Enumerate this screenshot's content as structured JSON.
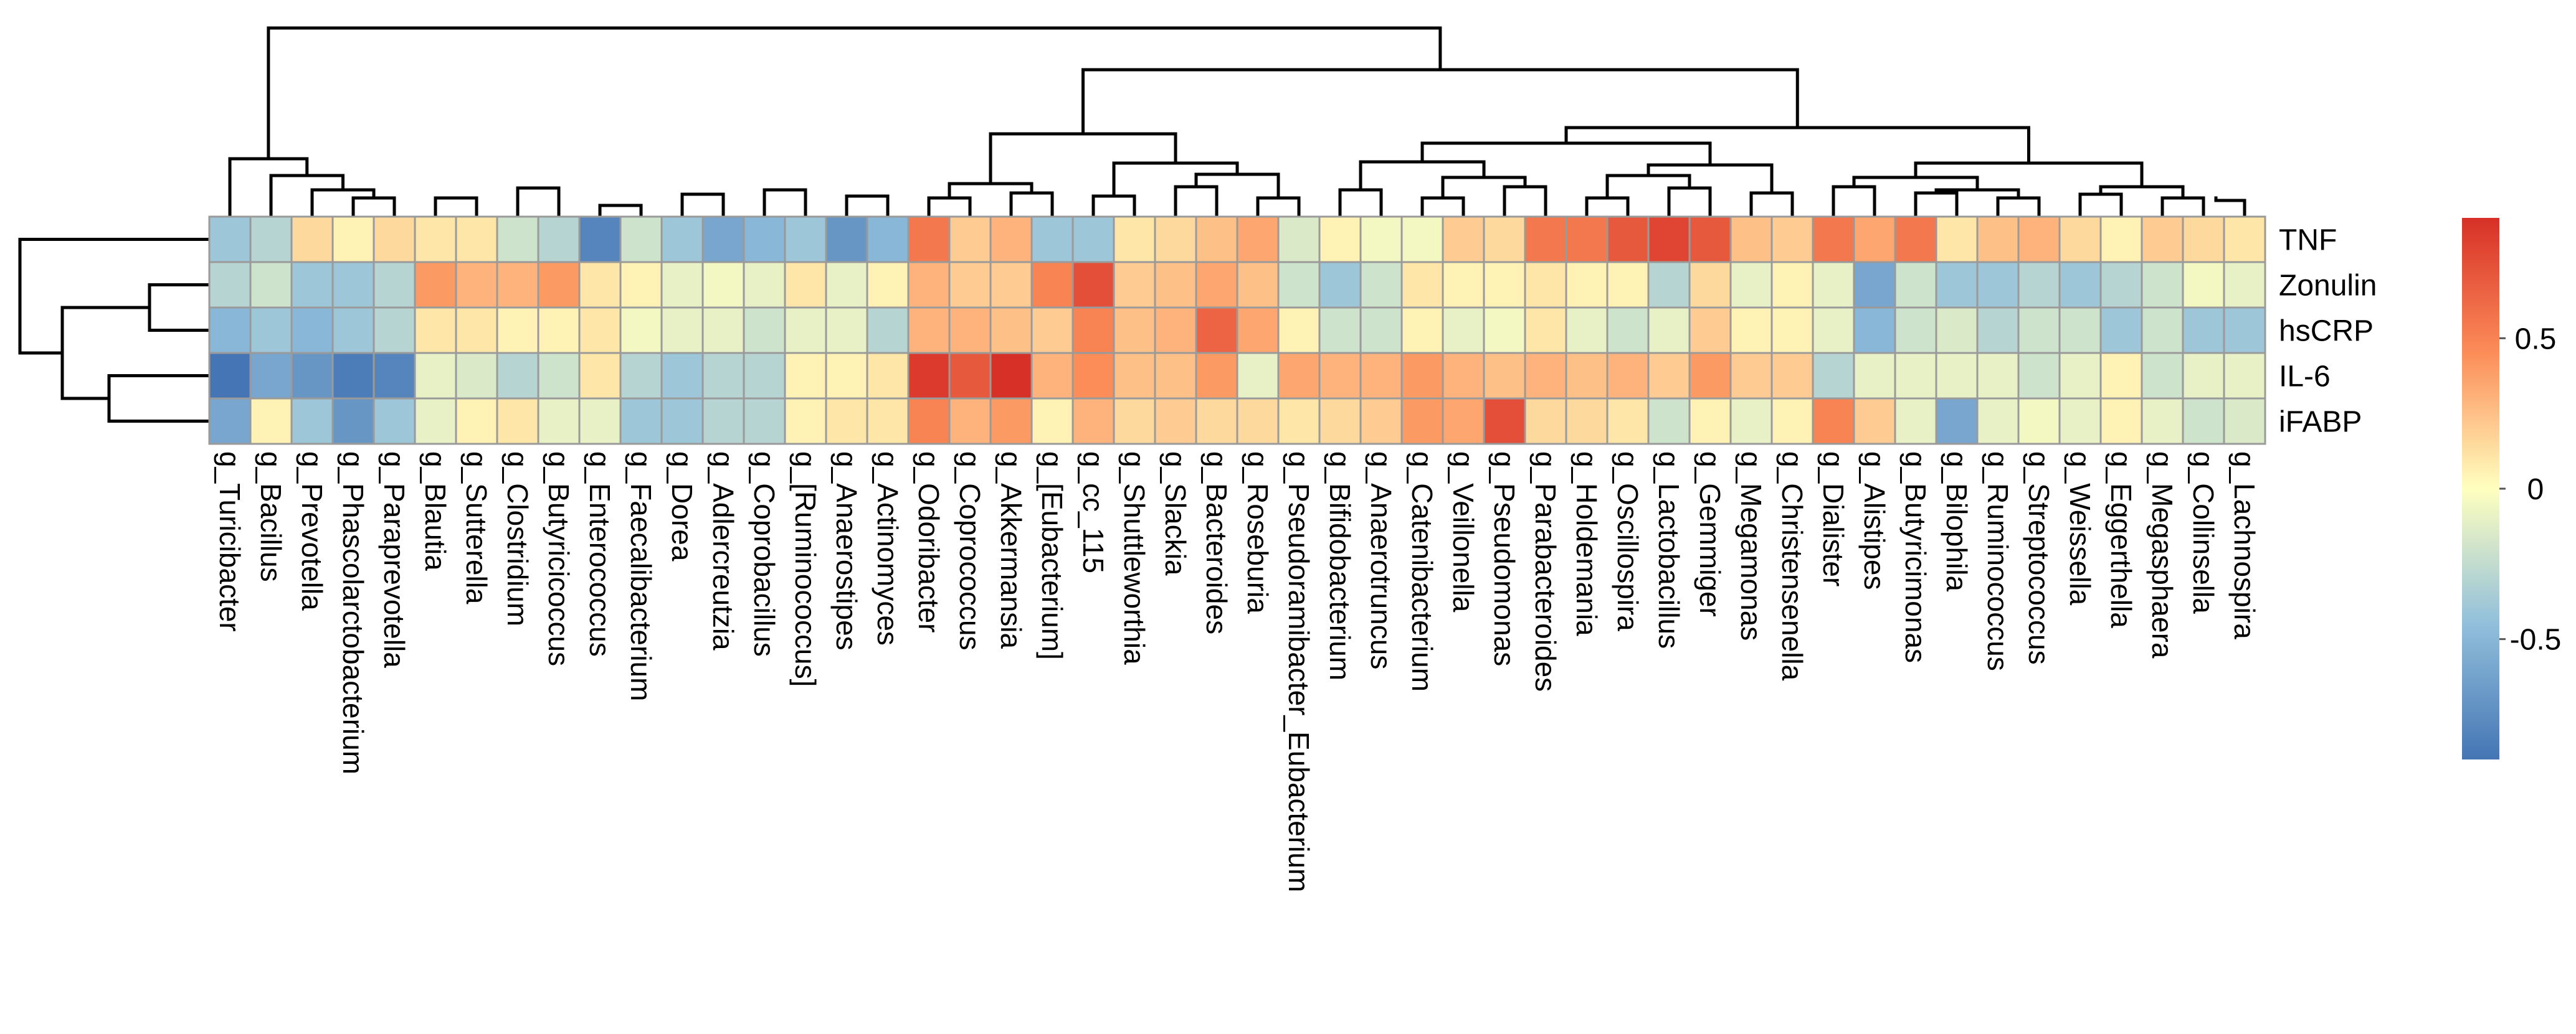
{
  "chart_data": {
    "type": "heatmap",
    "title": "",
    "rows": [
      "TNF",
      "Zonulin",
      "hsCRP",
      "IL-6",
      "iFABP"
    ],
    "columns": [
      "g_Turicibacter",
      "g_Bacillus",
      "g_Prevotella",
      "g_Phascolarctobacterium",
      "g_Paraprevotella",
      "g_Blautia",
      "g_Sutterella",
      "g_Clostridium",
      "g_Butyricicoccus",
      "g_Enterococcus",
      "g_Faecalibacterium",
      "g_Dorea",
      "g_Adlercreutzia",
      "g_Coprobacillus",
      "g_[Ruminococcus]",
      "g_Anaerostipes",
      "g_Actinomyces",
      "g_Odoribacter",
      "g_Coprococcus",
      "g_Akkermansia",
      "g_[Eubacterium]",
      "g_cc_115",
      "g_Shuttleworthia",
      "g_Slackia",
      "g_Bacteroides",
      "g_Roseburia",
      "g_Pseudoramibacter_Eubacterium",
      "g_Bifidobacterium",
      "g_Anaerotruncus",
      "g_Catenibacterium",
      "g_Veillonella",
      "g_Pseudomonas",
      "g_Parabacteroides",
      "g_Holdemania",
      "g_Oscillospira",
      "g_Lactobacillus",
      "g_Gemmiger",
      "g_Megamonas",
      "g_Christensenella",
      "g_Dialister",
      "g_Alistipes",
      "g_Butyricimonas",
      "g_Bilophila",
      "g_Ruminococcus",
      "g_Streptococcus",
      "g_Weissella",
      "g_Eggerthella",
      "g_Megasphaera",
      "g_Collinsella",
      "g_Lachnospira"
    ],
    "values": [
      [
        -0.4,
        -0.3,
        0.15,
        0.05,
        0.15,
        0.1,
        0.1,
        -0.2,
        -0.3,
        -0.8,
        -0.2,
        -0.4,
        -0.6,
        -0.5,
        -0.4,
        -0.7,
        -0.5,
        0.55,
        0.2,
        0.3,
        -0.4,
        -0.4,
        0.1,
        0.15,
        0.25,
        0.35,
        -0.15,
        0.05,
        -0.05,
        -0.05,
        0.2,
        0.15,
        0.55,
        0.55,
        0.7,
        0.8,
        0.7,
        0.25,
        0.2,
        0.55,
        0.35,
        0.55,
        0.1,
        0.25,
        0.3,
        0.15,
        0.05,
        0.2,
        0.15,
        0.1
      ],
      [
        -0.3,
        -0.2,
        -0.4,
        -0.4,
        -0.3,
        0.4,
        0.3,
        0.3,
        0.4,
        0.1,
        0.05,
        -0.1,
        -0.05,
        -0.1,
        0.1,
        -0.1,
        0.05,
        0.3,
        0.2,
        0.2,
        0.5,
        0.75,
        0.2,
        0.25,
        0.35,
        0.25,
        -0.2,
        -0.4,
        -0.2,
        0.1,
        0.05,
        0.05,
        0.1,
        0.05,
        0.05,
        -0.3,
        0.15,
        -0.1,
        0.05,
        -0.1,
        -0.6,
        -0.2,
        -0.4,
        -0.4,
        -0.3,
        -0.4,
        -0.3,
        -0.2,
        -0.05,
        -0.1
      ],
      [
        -0.5,
        -0.4,
        -0.5,
        -0.4,
        -0.3,
        0.1,
        0.1,
        0.05,
        0.05,
        0.1,
        -0.05,
        -0.1,
        -0.1,
        -0.2,
        -0.1,
        -0.1,
        -0.3,
        0.3,
        0.3,
        0.25,
        0.2,
        0.5,
        0.25,
        0.3,
        0.65,
        0.35,
        0.05,
        -0.2,
        -0.2,
        0.05,
        -0.1,
        -0.05,
        0.1,
        -0.1,
        -0.2,
        -0.1,
        0.2,
        0.05,
        0.05,
        -0.1,
        -0.5,
        -0.2,
        -0.15,
        -0.3,
        -0.2,
        -0.2,
        -0.4,
        -0.2,
        -0.4,
        -0.4
      ],
      [
        -0.9,
        -0.6,
        -0.7,
        -0.85,
        -0.8,
        -0.1,
        -0.15,
        -0.3,
        -0.2,
        0.1,
        -0.3,
        -0.4,
        -0.3,
        -0.3,
        0.05,
        0.05,
        0.1,
        0.85,
        0.7,
        0.9,
        0.3,
        0.45,
        0.25,
        0.25,
        0.4,
        -0.1,
        0.35,
        0.3,
        0.3,
        0.4,
        0.3,
        0.25,
        0.3,
        0.25,
        0.3,
        0.2,
        0.4,
        0.2,
        0.2,
        -0.3,
        -0.1,
        -0.1,
        -0.1,
        -0.1,
        -0.2,
        -0.1,
        0.05,
        -0.2,
        -0.1,
        -0.1
      ],
      [
        -0.6,
        0.05,
        -0.4,
        -0.7,
        -0.4,
        -0.1,
        0.05,
        0.1,
        -0.1,
        -0.1,
        -0.4,
        -0.4,
        -0.3,
        -0.3,
        0.05,
        0.1,
        0.1,
        0.5,
        0.3,
        0.4,
        0.05,
        0.3,
        0.15,
        0.2,
        0.15,
        0.15,
        0.1,
        0.15,
        0.2,
        0.4,
        0.35,
        0.75,
        0.15,
        0.15,
        0.1,
        -0.2,
        0.05,
        -0.1,
        0.05,
        0.5,
        0.2,
        -0.1,
        -0.6,
        -0.1,
        -0.05,
        -0.1,
        0.05,
        -0.1,
        -0.2,
        -0.15
      ]
    ],
    "colorbar": {
      "range": [
        -0.9,
        0.9
      ],
      "ticks": [
        0.5,
        0,
        -0.5
      ],
      "tick_labels": [
        "0.5",
        "0",
        "-0.5"
      ],
      "colors": [
        "#4575b4",
        "#91bfdb",
        "#ffffbf",
        "#fc8d59",
        "#d73027"
      ]
    },
    "legend_position": "right",
    "column_dendrogram": true,
    "row_dendrogram": true
  }
}
